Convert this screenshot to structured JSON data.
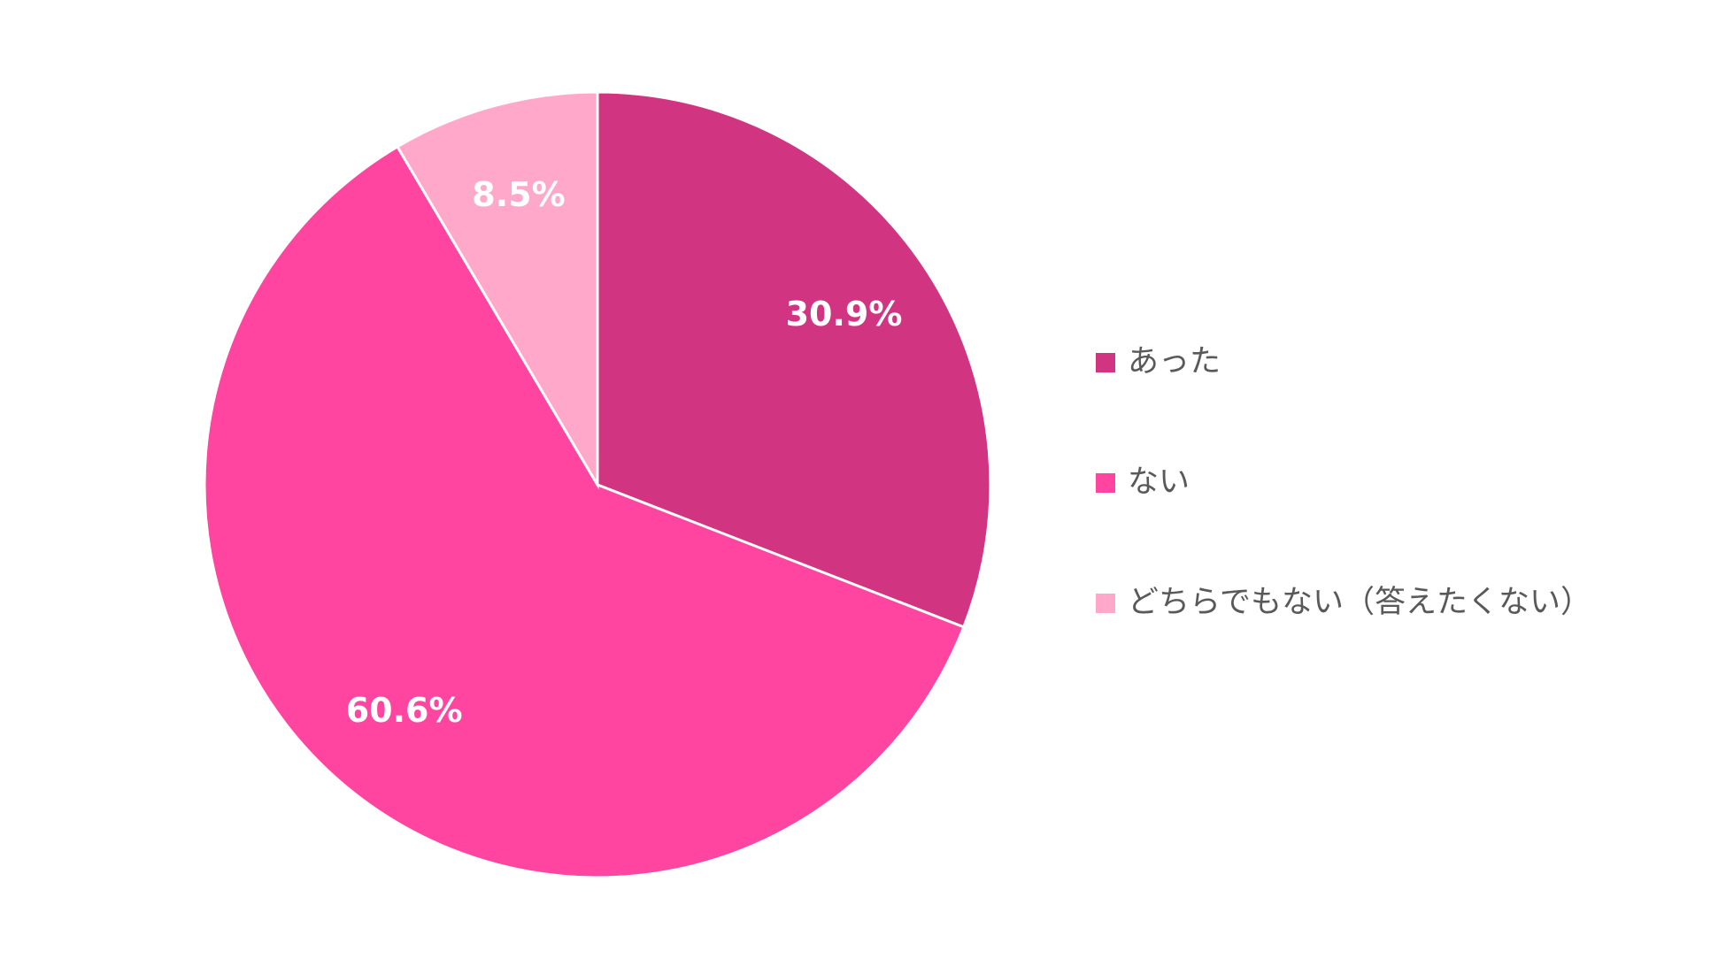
{
  "chart_data": {
    "type": "pie",
    "categories": [
      "あった",
      "ない",
      "どちらでもない（答えたくない）"
    ],
    "values": [
      30.9,
      60.6,
      8.5
    ],
    "value_labels": [
      "30.9%",
      "60.6%",
      "8.5%"
    ],
    "colors": [
      "#d13581",
      "#ff45a0",
      "#ffa8c9"
    ]
  }
}
